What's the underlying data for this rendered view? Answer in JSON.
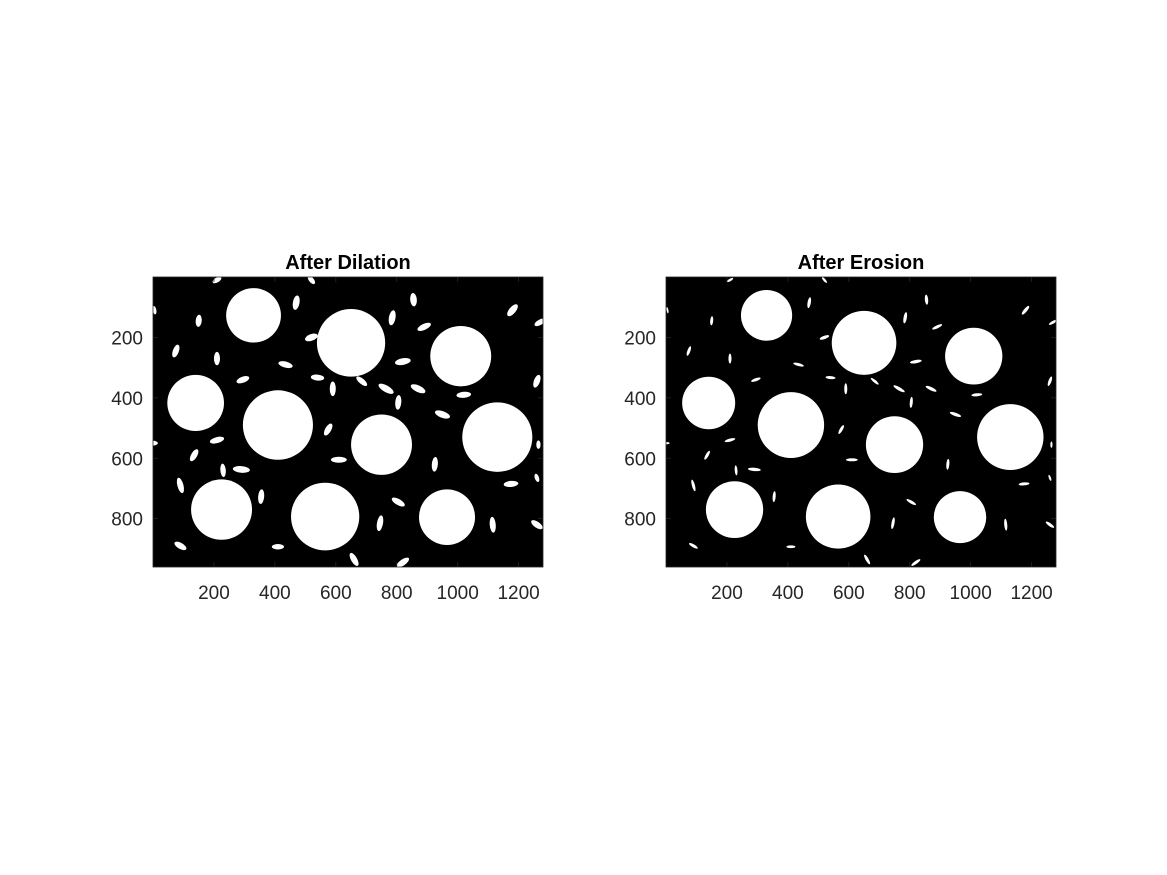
{
  "figure": {
    "background": "#ffffff",
    "image_foreground": "#ffffff",
    "image_background": "#000000",
    "tick_color": "#262626"
  },
  "panels": [
    {
      "title": "After Dilation",
      "x_ticks": [
        "200",
        "400",
        "600",
        "800",
        "1000",
        "1200"
      ],
      "y_ticks": [
        "200",
        "400",
        "600",
        "800"
      ]
    },
    {
      "title": "After Erosion",
      "x_ticks": [
        "200",
        "400",
        "600",
        "800",
        "1000",
        "1200"
      ],
      "y_ticks": [
        "200",
        "400",
        "600",
        "800"
      ]
    }
  ]
}
